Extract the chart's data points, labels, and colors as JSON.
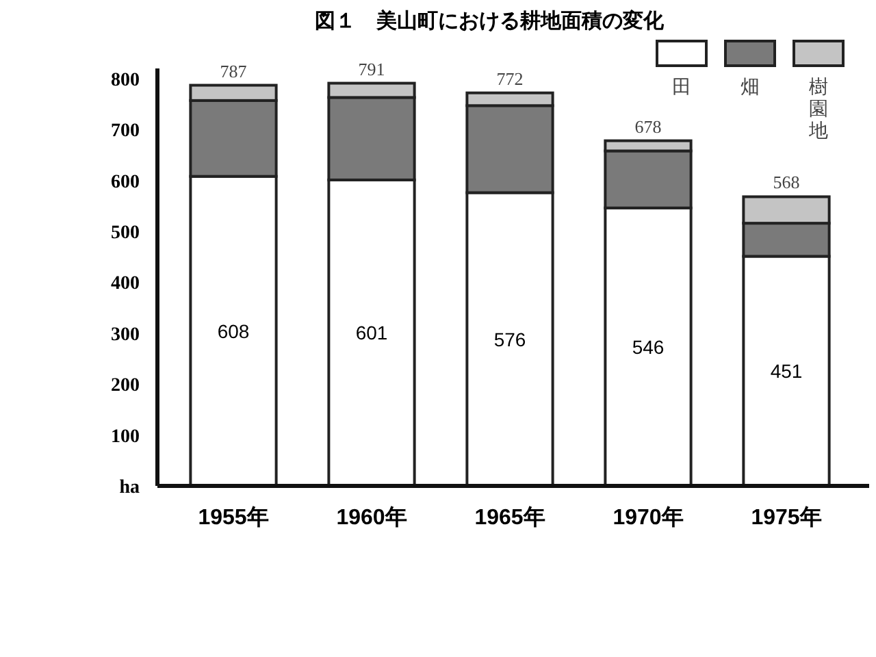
{
  "chart_data": {
    "type": "bar",
    "stacked": true,
    "title": "図１　美山町における耕地面積の変化",
    "categories": [
      "1955年",
      "1960年",
      "1965年",
      "1970年",
      "1975年"
    ],
    "series": [
      {
        "name": "田",
        "color": "#ffffff",
        "values": [
          608,
          601,
          576,
          546,
          451
        ],
        "value_labels": [
          "608",
          "601",
          "576",
          "546",
          "451"
        ]
      },
      {
        "name": "畑",
        "color": "#7a7a7a",
        "values": [
          149,
          162,
          171,
          112,
          65
        ]
      },
      {
        "name": "樹園地",
        "color": "#c4c4c4",
        "values": [
          30,
          28,
          25,
          20,
          52
        ]
      }
    ],
    "totals": [
      "787",
      "791",
      "772",
      "678",
      "568"
    ],
    "ylim": [
      0,
      820
    ],
    "yticks": [
      {
        "value": 0,
        "label": "ha"
      },
      100,
      200,
      300,
      400,
      500,
      600,
      700,
      800
    ],
    "grid": false,
    "legend": "top right"
  }
}
